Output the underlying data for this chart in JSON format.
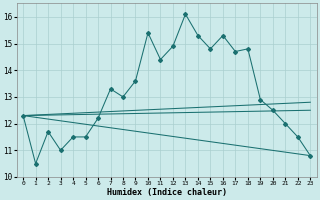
{
  "xlabel": "Humidex (Indice chaleur)",
  "x": [
    0,
    1,
    2,
    3,
    4,
    5,
    6,
    7,
    8,
    9,
    10,
    11,
    12,
    13,
    14,
    15,
    16,
    17,
    18,
    19,
    20,
    21,
    22,
    23
  ],
  "line_main": [
    12.3,
    10.5,
    11.7,
    11.0,
    11.5,
    11.5,
    12.2,
    13.3,
    13.0,
    13.6,
    15.4,
    14.4,
    14.9,
    16.1,
    15.3,
    14.8,
    15.3,
    14.7,
    14.8,
    12.9,
    12.5,
    12.0,
    11.5,
    10.8
  ],
  "trend1_x": [
    0,
    23
  ],
  "trend1_y": [
    12.3,
    12.8
  ],
  "trend2_x": [
    0,
    23
  ],
  "trend2_y": [
    12.3,
    12.5
  ],
  "trend3_x": [
    0,
    23
  ],
  "trend3_y": [
    12.3,
    10.8
  ],
  "ylim": [
    10,
    16.5
  ],
  "xlim": [
    -0.5,
    23.5
  ],
  "yticks": [
    10,
    11,
    12,
    13,
    14,
    15,
    16
  ],
  "xticks": [
    0,
    1,
    2,
    3,
    4,
    5,
    6,
    7,
    8,
    9,
    10,
    11,
    12,
    13,
    14,
    15,
    16,
    17,
    18,
    19,
    20,
    21,
    22,
    23
  ],
  "line_color": "#1a7070",
  "bg_color": "#cceaea",
  "grid_color": "#aacfcf"
}
